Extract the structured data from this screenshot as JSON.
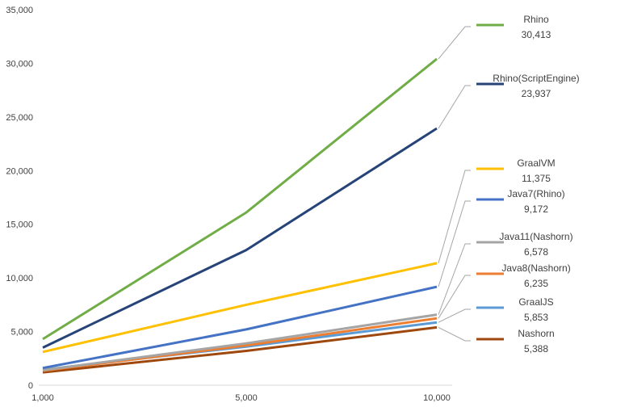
{
  "chart_data": {
    "type": "line",
    "x": [
      1000,
      5000,
      10000
    ],
    "x_tick_labels": [
      "1,000",
      "5,000",
      "10,000"
    ],
    "y_ticks": [
      0,
      5000,
      10000,
      15000,
      20000,
      25000,
      30000,
      35000
    ],
    "y_tick_labels": [
      "0",
      "5,000",
      "10,000",
      "15,000",
      "20,000",
      "25,000",
      "30,000",
      "35,000"
    ],
    "ylim": [
      0,
      35000
    ],
    "grid": false,
    "legend": "right, callout labels with leader lines",
    "series": [
      {
        "name": "Rhino",
        "color": "#70ad47",
        "values": [
          4300,
          16100,
          30413
        ],
        "label_value": "30,413"
      },
      {
        "name": "Rhino(ScriptEngine)",
        "color": "#264478",
        "values": [
          3500,
          12600,
          23937
        ],
        "label_value": "23,937"
      },
      {
        "name": "GraalVM",
        "color": "#ffc000",
        "values": [
          3100,
          7500,
          11375
        ],
        "label_value": "11,375"
      },
      {
        "name": "Java7(Rhino)",
        "color": "#4472c4",
        "values": [
          1600,
          5200,
          9172
        ],
        "label_value": "9,172"
      },
      {
        "name": "Java11(Nashorn)",
        "color": "#a5a5a5",
        "values": [
          1400,
          3900,
          6578
        ],
        "label_value": "6,578"
      },
      {
        "name": "Java8(Nashorn)",
        "color": "#ed7d31",
        "values": [
          1350,
          3700,
          6235
        ],
        "label_value": "6,235"
      },
      {
        "name": "GraalJS",
        "color": "#5b9bd5",
        "values": [
          1450,
          3600,
          5853
        ],
        "label_value": "5,853"
      },
      {
        "name": "Nashorn",
        "color": "#9e480e",
        "values": [
          1200,
          3200,
          5388
        ],
        "label_value": "5,388"
      }
    ]
  }
}
